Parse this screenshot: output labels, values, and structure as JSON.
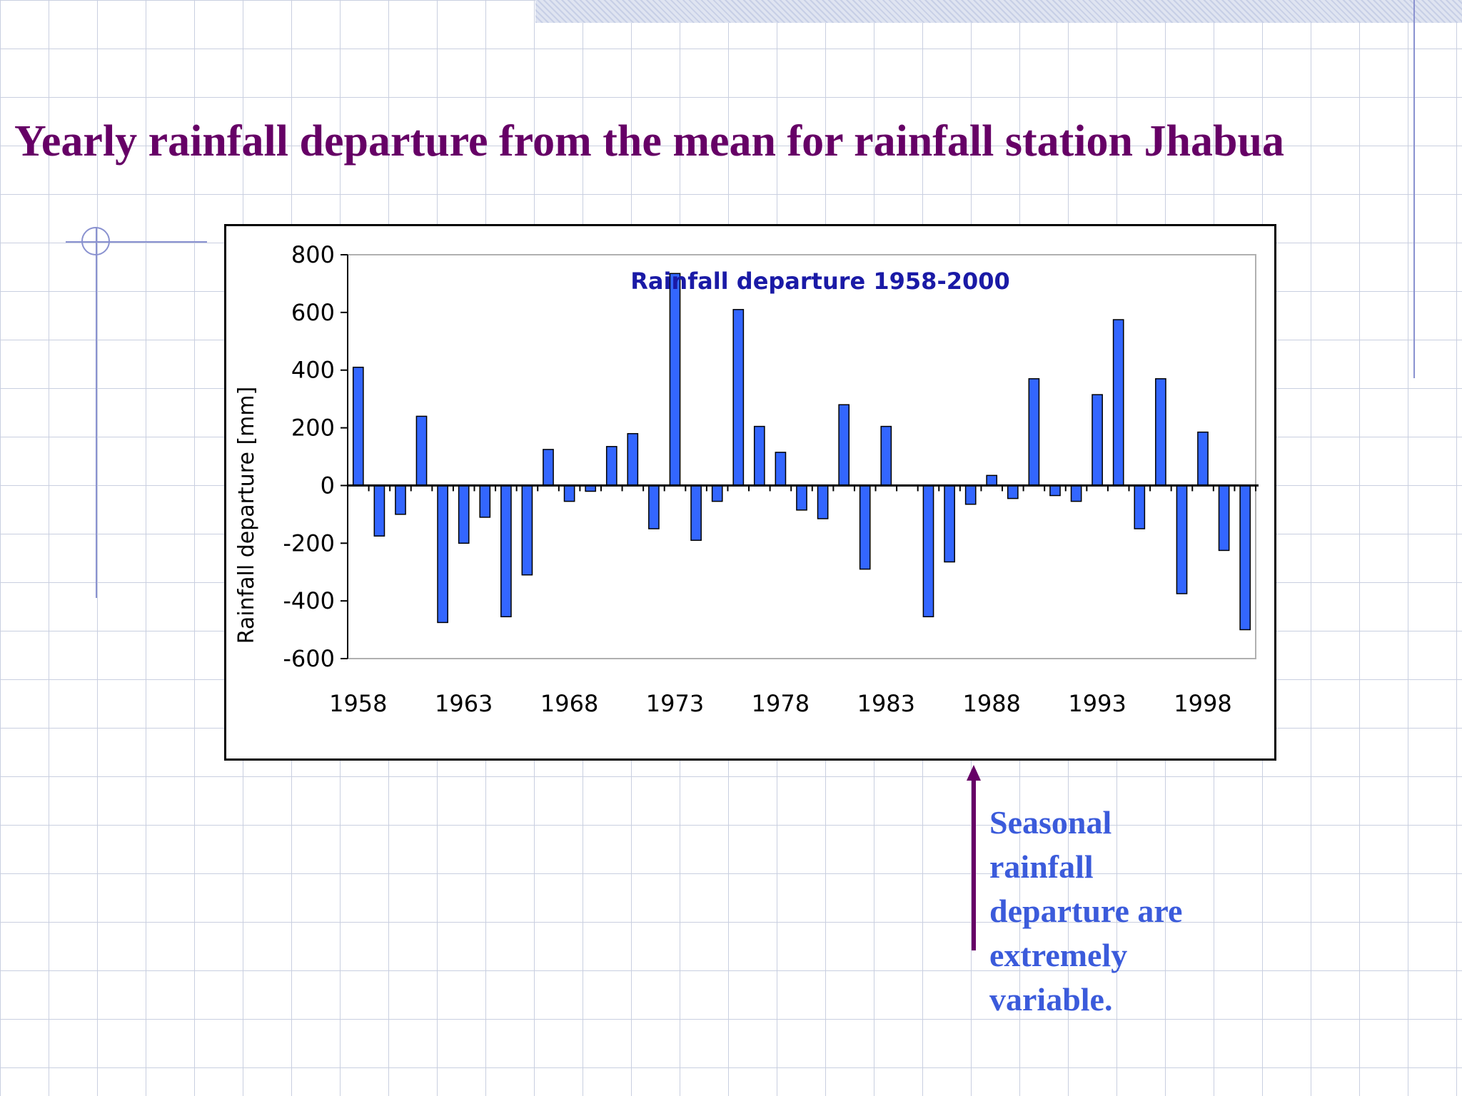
{
  "slide": {
    "title": "Yearly rainfall departure from the mean for rainfall station Jhabua",
    "note": "Seasonal rainfall departure are extremely variable.",
    "colors": {
      "title": "#660066",
      "note": "#3b5bdb",
      "arrow": "#660066",
      "bar": "#3366ff",
      "chart_title": "#1a1aa6"
    }
  },
  "chart_data": {
    "type": "bar",
    "title": "Rainfall departure 1958-2000",
    "xlabel": "",
    "ylabel": "Rainfall departure [mm]",
    "ylim": [
      -600,
      800
    ],
    "yticks": [
      800,
      600,
      400,
      200,
      0,
      -200,
      -400,
      -600
    ],
    "ytick_labels": [
      "800",
      "600",
      "400",
      "200",
      "0",
      "-200",
      "-400",
      "-600"
    ],
    "xtick_labels": [
      "1958",
      "1963",
      "1968",
      "1973",
      "1978",
      "1983",
      "1988",
      "1993",
      "1998"
    ],
    "grid": false,
    "legend": "none",
    "categories": [
      1958,
      1959,
      1960,
      1961,
      1962,
      1963,
      1964,
      1965,
      1966,
      1967,
      1968,
      1969,
      1970,
      1971,
      1972,
      1973,
      1974,
      1975,
      1976,
      1977,
      1978,
      1979,
      1980,
      1981,
      1982,
      1983,
      1984,
      1985,
      1986,
      1987,
      1988,
      1989,
      1990,
      1991,
      1992,
      1993,
      1994,
      1995,
      1996,
      1997,
      1998,
      1999,
      2000
    ],
    "values": [
      410,
      -175,
      -100,
      240,
      -475,
      -200,
      -110,
      -455,
      -310,
      125,
      -55,
      -20,
      135,
      180,
      -150,
      735,
      -190,
      -55,
      610,
      205,
      115,
      -85,
      -115,
      280,
      -290,
      205,
      0,
      -455,
      -265,
      -65,
      35,
      -45,
      370,
      -35,
      -55,
      315,
      575,
      -150,
      370,
      -375,
      185,
      -225,
      -500
    ]
  }
}
